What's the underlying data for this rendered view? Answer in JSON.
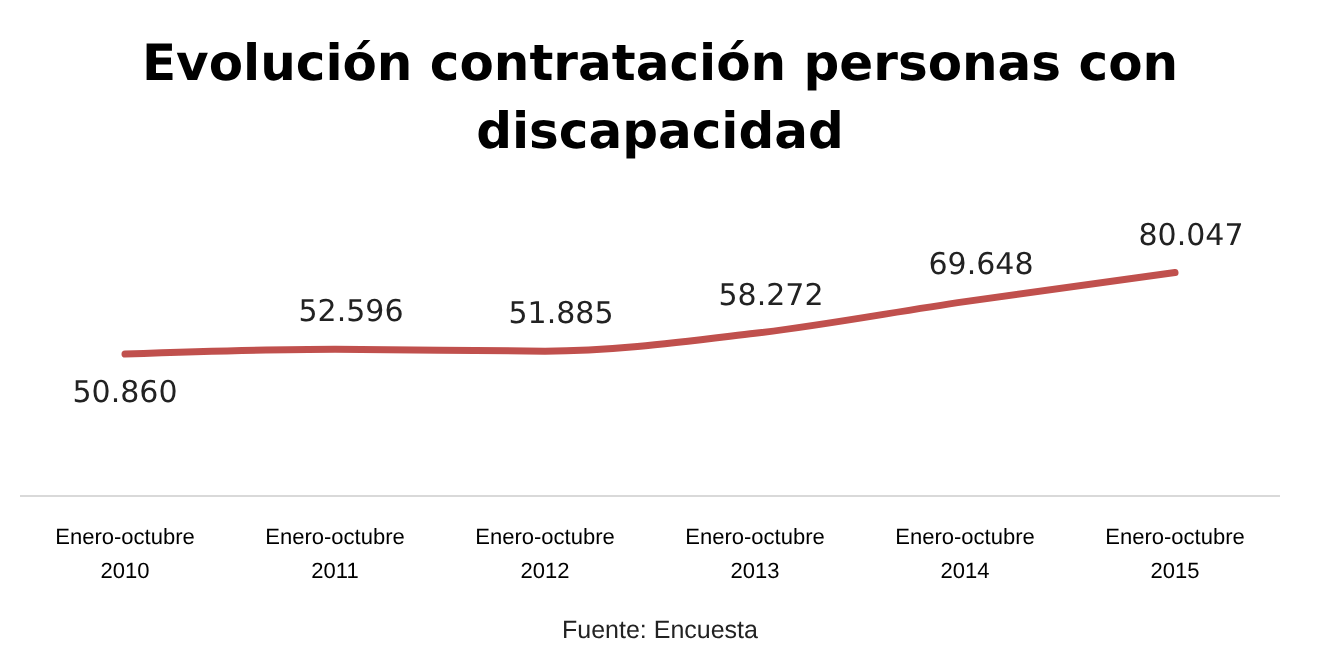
{
  "chart_data": {
    "type": "line",
    "title": "Evolución contratación personas con discapacidad",
    "categories": [
      "Enero-octubre 2010",
      "Enero-octubre 2011",
      "Enero-octubre 2012",
      "Enero-octubre 2013",
      "Enero-octubre 2014",
      "Enero-octubre 2015"
    ],
    "series": [
      {
        "color": "#c0504d",
        "values": [
          50860,
          52596,
          51885,
          58272,
          69648,
          80047
        ],
        "value_labels": [
          "50.860",
          "52.596",
          "51.885",
          "58.272",
          "69.648",
          "80.047"
        ]
      }
    ],
    "marker": "none",
    "line_style": "solid",
    "annotations": [
      "Fuente: Encuesta"
    ]
  }
}
